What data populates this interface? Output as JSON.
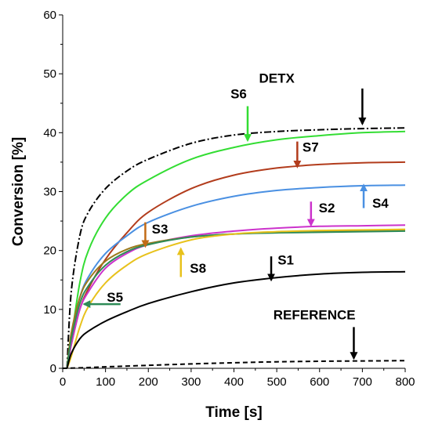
{
  "chart_data": {
    "type": "line",
    "xlabel": "Time [s]",
    "ylabel": "Conversion [%]",
    "xlim": [
      0,
      800
    ],
    "ylim": [
      0,
      60
    ],
    "x_ticks": [
      0,
      100,
      200,
      300,
      400,
      500,
      600,
      700,
      800
    ],
    "y_ticks": [
      0,
      10,
      20,
      30,
      40,
      50,
      60
    ],
    "grid": false,
    "legend": "none",
    "series": [
      {
        "name": "DETX",
        "color": "#000000",
        "dash": "dashdot",
        "x": [
          10,
          20,
          40,
          60,
          100,
          150,
          200,
          300,
          400,
          500,
          600,
          700,
          800
        ],
        "y": [
          0,
          13,
          22.5,
          26.5,
          30.5,
          33.5,
          35.5,
          38.2,
          39.6,
          40.2,
          40.5,
          40.7,
          40.8
        ]
      },
      {
        "name": "S6",
        "color": "#33dd33",
        "dash": "solid",
        "x": [
          10,
          20,
          40,
          60,
          100,
          150,
          200,
          300,
          400,
          500,
          600,
          700,
          800
        ],
        "y": [
          0,
          5,
          14.5,
          20,
          25.5,
          29.5,
          32,
          35.5,
          37.5,
          38.8,
          39.5,
          40,
          40.2
        ]
      },
      {
        "name": "S7",
        "color": "#b23c1c",
        "dash": "solid",
        "x": [
          10,
          20,
          40,
          60,
          100,
          150,
          200,
          300,
          400,
          500,
          600,
          700,
          800
        ],
        "y": [
          0,
          4,
          10,
          13.5,
          18.5,
          23,
          26.5,
          30.5,
          32.8,
          34,
          34.6,
          34.9,
          35
        ]
      },
      {
        "name": "S4",
        "color": "#4a90e2",
        "dash": "solid",
        "x": [
          10,
          20,
          40,
          60,
          100,
          150,
          200,
          300,
          400,
          500,
          600,
          700,
          800
        ],
        "y": [
          0,
          5.5,
          12,
          15.5,
          19.5,
          22.5,
          24.8,
          27.5,
          29.2,
          30.2,
          30.7,
          31,
          31.1
        ]
      },
      {
        "name": "S2",
        "color": "#cc33cc",
        "dash": "solid",
        "x": [
          10,
          20,
          40,
          60,
          100,
          150,
          200,
          300,
          400,
          500,
          600,
          700,
          800
        ],
        "y": [
          0,
          4,
          10,
          13,
          17,
          19.5,
          21,
          22.5,
          23.3,
          23.8,
          24.1,
          24.2,
          24.3
        ]
      },
      {
        "name": "S3",
        "color": "#9c7a1c",
        "dash": "solid",
        "x": [
          10,
          20,
          40,
          60,
          100,
          150,
          200,
          300,
          400,
          500,
          600,
          700,
          800
        ],
        "y": [
          0,
          6,
          12,
          15,
          18.2,
          20.2,
          21.2,
          22.3,
          22.8,
          23.1,
          23.3,
          23.4,
          23.5
        ]
      },
      {
        "name": "S5",
        "color": "#2e8b57",
        "dash": "solid",
        "x": [
          10,
          20,
          40,
          60,
          100,
          150,
          200,
          300,
          400,
          500,
          600,
          700,
          800
        ],
        "y": [
          0,
          5,
          11,
          14,
          17.5,
          19.8,
          21,
          22.3,
          22.8,
          23,
          23.1,
          23.2,
          23.3
        ]
      },
      {
        "name": "S8",
        "color": "#e8c21c",
        "dash": "solid",
        "x": [
          10,
          20,
          40,
          60,
          100,
          150,
          200,
          300,
          400,
          500,
          600,
          700,
          800
        ],
        "y": [
          0,
          2,
          7,
          10.5,
          14.5,
          17.5,
          19.5,
          21.8,
          22.8,
          23.2,
          23.4,
          23.5,
          23.6
        ]
      },
      {
        "name": "S1",
        "color": "#000000",
        "dash": "solid",
        "x": [
          10,
          20,
          40,
          60,
          100,
          150,
          200,
          300,
          400,
          500,
          600,
          700,
          800
        ],
        "y": [
          0,
          2.5,
          5,
          6.3,
          8,
          9.6,
          11,
          13,
          14.5,
          15.4,
          16,
          16.3,
          16.4
        ]
      },
      {
        "name": "REFERENCE",
        "color": "#000000",
        "dash": "dashed",
        "x": [
          0,
          50,
          100,
          200,
          300,
          400,
          500,
          600,
          700,
          800
        ],
        "y": [
          0,
          0.1,
          0.25,
          0.5,
          0.75,
          0.95,
          1.1,
          1.2,
          1.25,
          1.3
        ]
      }
    ],
    "annotations": [
      {
        "label": "DETX",
        "color": "#000000",
        "label_x": 500,
        "label_y": 48.5,
        "arrow_from": [
          700,
          47.5
        ],
        "arrow_to": [
          700,
          41.5
        ],
        "anchor": "middle"
      },
      {
        "label": "S6",
        "color": "#33dd33",
        "label_x": 430,
        "label_y": 45.8,
        "arrow_from": [
          432,
          44.5
        ],
        "arrow_to": [
          432,
          38.7
        ],
        "anchor": "end"
      },
      {
        "label": "S7",
        "color": "#b23c1c",
        "label_x": 560,
        "label_y": 36.8,
        "arrow_from": [
          548,
          38.5
        ],
        "arrow_to": [
          548,
          34.2
        ],
        "anchor": "start"
      },
      {
        "label": "S4",
        "color": "#4a90e2",
        "label_x": 723,
        "label_y": 27.3,
        "arrow_from": [
          703,
          27.2
        ],
        "arrow_to": [
          703,
          31.1
        ],
        "anchor": "start"
      },
      {
        "label": "S2",
        "color": "#cc33cc",
        "label_x": 598,
        "label_y": 26.5,
        "arrow_from": [
          580,
          28.3
        ],
        "arrow_to": [
          580,
          24.3
        ],
        "anchor": "start"
      },
      {
        "label": "S3",
        "color": "#c26b16",
        "label_x": 208,
        "label_y": 22.9,
        "arrow_from": [
          193,
          24.8
        ],
        "arrow_to": [
          193,
          20.7
        ],
        "anchor": "start"
      },
      {
        "label": "S8",
        "color": "#e8c21c",
        "label_x": 297,
        "label_y": 16.2,
        "arrow_from": [
          276,
          15.5
        ],
        "arrow_to": [
          276,
          20.3
        ],
        "anchor": "start"
      },
      {
        "label": "S1",
        "color": "#000000",
        "label_x": 502,
        "label_y": 17.6,
        "arrow_from": [
          487,
          19
        ],
        "arrow_to": [
          487,
          15
        ],
        "anchor": "start"
      },
      {
        "label": "S5",
        "color": "#2e8b57",
        "label_x": 103,
        "label_y": 11.3,
        "arrow_from": [
          135,
          10.9
        ],
        "arrow_to": [
          50,
          10.9
        ],
        "anchor": "start"
      },
      {
        "label": "REFERENCE",
        "color": "#000000",
        "label_x": 588,
        "label_y": 8.3,
        "arrow_from": [
          680,
          7
        ],
        "arrow_to": [
          680,
          1.7
        ],
        "anchor": "middle"
      }
    ]
  }
}
